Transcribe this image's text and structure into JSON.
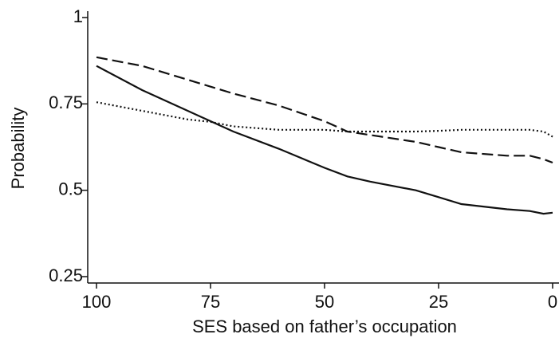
{
  "chart_data": {
    "type": "line",
    "x_label": "SES based on father’s occupation",
    "y_label": "Probability",
    "x": [
      100,
      90,
      80,
      75,
      70,
      60,
      50,
      45,
      40,
      30,
      25,
      20,
      10,
      5,
      2,
      0
    ],
    "series": [
      {
        "color": "#111111",
        "dash": "solid",
        "values": [
          0.86,
          0.79,
          0.73,
          0.7,
          0.67,
          0.62,
          0.565,
          0.54,
          0.525,
          0.5,
          0.48,
          0.46,
          0.445,
          0.44,
          0.432,
          0.435
        ]
      },
      {
        "color": "#111111",
        "dash": "dashed",
        "values": [
          0.885,
          0.86,
          0.82,
          0.8,
          0.78,
          0.745,
          0.7,
          0.67,
          0.66,
          0.64,
          0.625,
          0.61,
          0.6,
          0.6,
          0.59,
          0.58
        ]
      },
      {
        "color": "#111111",
        "dash": "dotted",
        "values": [
          0.755,
          0.73,
          0.705,
          0.698,
          0.685,
          0.675,
          0.675,
          0.67,
          0.67,
          0.67,
          0.672,
          0.675,
          0.675,
          0.675,
          0.67,
          0.655
        ]
      }
    ],
    "xlim": [
      100,
      0
    ],
    "xticks": [
      100,
      75,
      50,
      25,
      0
    ],
    "ylim": [
      0.25,
      1
    ],
    "yticks": [
      0.25,
      0.5,
      0.75,
      1
    ]
  }
}
